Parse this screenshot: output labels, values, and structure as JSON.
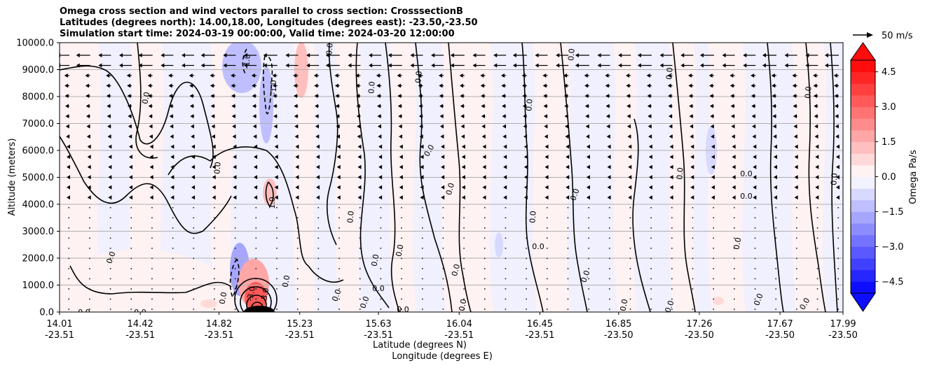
{
  "chart_data": {
    "type": "heatmap",
    "title": [
      "Omega cross section and wind vectors parallel to cross section: CrosssectionB",
      "Latitudes (degrees north): 14.00,18.00, Longitudes (degrees east): -23.50,-23.50",
      "Simulation start time: 2024-03-19 00:00:00, Valid time: 2024-03-20 12:00:00"
    ],
    "ylabel": "Altitude (meters)",
    "xlabel_line1": "Latitude (degrees N)",
    "xlabel_line2": "Longitude (degrees E)",
    "ylim": [
      0,
      10000
    ],
    "xlim": [
      14.01,
      17.99
    ],
    "y_ticks": [
      "0.0",
      "1000.0",
      "2000.0",
      "3000.0",
      "4000.0",
      "5000.0",
      "6000.0",
      "7000.0",
      "8000.0",
      "9000.0",
      "10000.0"
    ],
    "x_ticks": [
      {
        "lat": "14.01",
        "lon": "-23.51"
      },
      {
        "lat": "14.42",
        "lon": "-23.51"
      },
      {
        "lat": "14.82",
        "lon": "-23.51"
      },
      {
        "lat": "15.23",
        "lon": "-23.51"
      },
      {
        "lat": "15.63",
        "lon": "-23.51"
      },
      {
        "lat": "16.04",
        "lon": "-23.51"
      },
      {
        "lat": "16.45",
        "lon": "-23.51"
      },
      {
        "lat": "16.85",
        "lon": "-23.50"
      },
      {
        "lat": "17.26",
        "lon": "-23.50"
      },
      {
        "lat": "17.67",
        "lon": "-23.50"
      },
      {
        "lat": "17.99",
        "lon": "-23.50"
      }
    ],
    "colorbar": {
      "label": "Omega Pa/s",
      "range": [
        -5,
        5
      ],
      "extend": "both",
      "tick_labels": [
        "4.5",
        "3.0",
        "1.5",
        "0.0",
        "−1.5",
        "−3.0",
        "−4.5"
      ],
      "tick_values": [
        4.5,
        3.0,
        1.5,
        0.0,
        -1.5,
        -3.0,
        -4.5
      ],
      "level_step": 0.5,
      "colormap": "bwr"
    },
    "quiver_key_label": "50 m/s",
    "grid": "horizontal",
    "contour_labels": [
      "0.0",
      "-1.0",
      "1.0",
      "-3.0",
      "3.0"
    ]
  }
}
